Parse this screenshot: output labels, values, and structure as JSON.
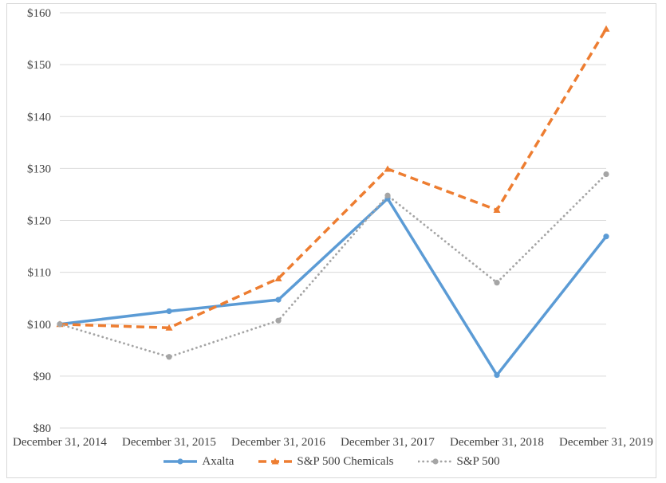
{
  "chart": {
    "background_color": "#ffffff",
    "border_color": "#d9d9d9",
    "gridline_color": "#d9d9d9",
    "text_color": "#404040"
  },
  "chart_data": {
    "type": "line",
    "title": "",
    "xlabel": "",
    "ylabel": "",
    "categories": [
      "December 31, 2014",
      "December 31, 2015",
      "December 31, 2016",
      "December 31, 2017",
      "December 31, 2018",
      "December 31, 2019"
    ],
    "series": [
      {
        "name": "Axalta",
        "color": "#5b9bd5",
        "line_style": "solid",
        "marker": "circle",
        "values": [
          100.0,
          102.5,
          104.7,
          124.2,
          90.2,
          116.9
        ]
      },
      {
        "name": "S&P 500 Chemicals",
        "color": "#ed7d31",
        "line_style": "dashed",
        "marker": "triangle",
        "values": [
          100.0,
          99.3,
          108.8,
          129.9,
          122.0,
          156.9
        ]
      },
      {
        "name": "S&P 500",
        "color": "#a5a5a5",
        "line_style": "dotted",
        "marker": "circle",
        "values": [
          100.0,
          93.7,
          100.7,
          124.8,
          108.0,
          128.9
        ]
      }
    ],
    "ylim": [
      80,
      160
    ],
    "ytick_step": 10,
    "ytick_prefix": "$",
    "ytick_labels": [
      "$80",
      "$90",
      "$100",
      "$110",
      "$120",
      "$130",
      "$140",
      "$150",
      "$160"
    ],
    "grid": true,
    "legend_position": "bottom"
  }
}
